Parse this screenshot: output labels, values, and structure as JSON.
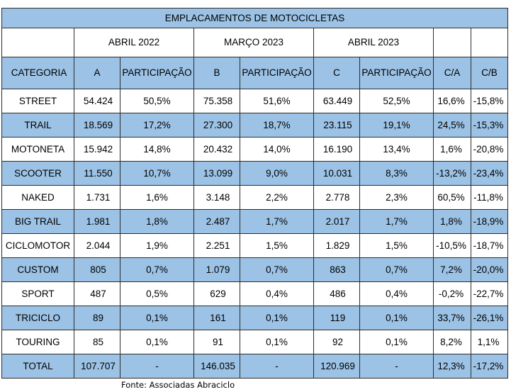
{
  "title": "EMPLACAMENTOS DE MOTOCICLETAS",
  "periods": [
    "ABRIL 2022",
    "MARÇO 2023",
    "ABRIL 2023"
  ],
  "headers": [
    "CATEGORIA",
    "A",
    "PARTICIPAÇÃO",
    "B",
    "PARTICIPAÇÃO",
    "C",
    "PARTICIPAÇÃO",
    "C/A",
    "C/B"
  ],
  "rows": [
    [
      "STREET",
      "54.424",
      "50,5%",
      "75.358",
      "51,6%",
      "63.449",
      "52,5%",
      "16,6%",
      "-15,8%"
    ],
    [
      "TRAIL",
      "18.569",
      "17,2%",
      "27.300",
      "18,7%",
      "23.115",
      "19,1%",
      "24,5%",
      "-15,3%"
    ],
    [
      "MOTONETA",
      "15.942",
      "14,8%",
      "20.432",
      "14,0%",
      "16.190",
      "13,4%",
      "1,6%",
      "-20,8%"
    ],
    [
      "SCOOTER",
      "11.550",
      "10,7%",
      "13.099",
      "9,0%",
      "10.031",
      "8,3%",
      "-13,2%",
      "-23,4%"
    ],
    [
      "NAKED",
      "1.731",
      "1,6%",
      "3.148",
      "2,2%",
      "2.778",
      "2,3%",
      "60,5%",
      "-11,8%"
    ],
    [
      "BIG TRAIL",
      "1.981",
      "1,8%",
      "2.487",
      "1,7%",
      "2.017",
      "1,7%",
      "1,8%",
      "-18,9%"
    ],
    [
      "CICLOMOTOR",
      "2.044",
      "1,9%",
      "2.251",
      "1,5%",
      "1.829",
      "1,5%",
      "-10,5%",
      "-18,7%"
    ],
    [
      "CUSTOM",
      "805",
      "0,7%",
      "1.079",
      "0,7%",
      "863",
      "0,7%",
      "7,2%",
      "-20,0%"
    ],
    [
      "SPORT",
      "487",
      "0,5%",
      "629",
      "0,4%",
      "486",
      "0,4%",
      "-0,2%",
      "-22,7%"
    ],
    [
      "TRICICLO",
      "89",
      "0,1%",
      "161",
      "0,1%",
      "119",
      "0,1%",
      "33,7%",
      "-26,1%"
    ],
    [
      "TOURING",
      "85",
      "0,1%",
      "91",
      "0,1%",
      "92",
      "0,1%",
      "8,2%",
      "1,1%"
    ],
    [
      "TOTAL",
      "107.707",
      "-",
      "146.035",
      "-",
      "120.969",
      "-",
      "12,3%",
      "-17,2%"
    ]
  ],
  "source": "Fonte: Associadas Abraciclo",
  "colors": {
    "band": "#9cc2e5",
    "border": "#2d2d2d"
  }
}
